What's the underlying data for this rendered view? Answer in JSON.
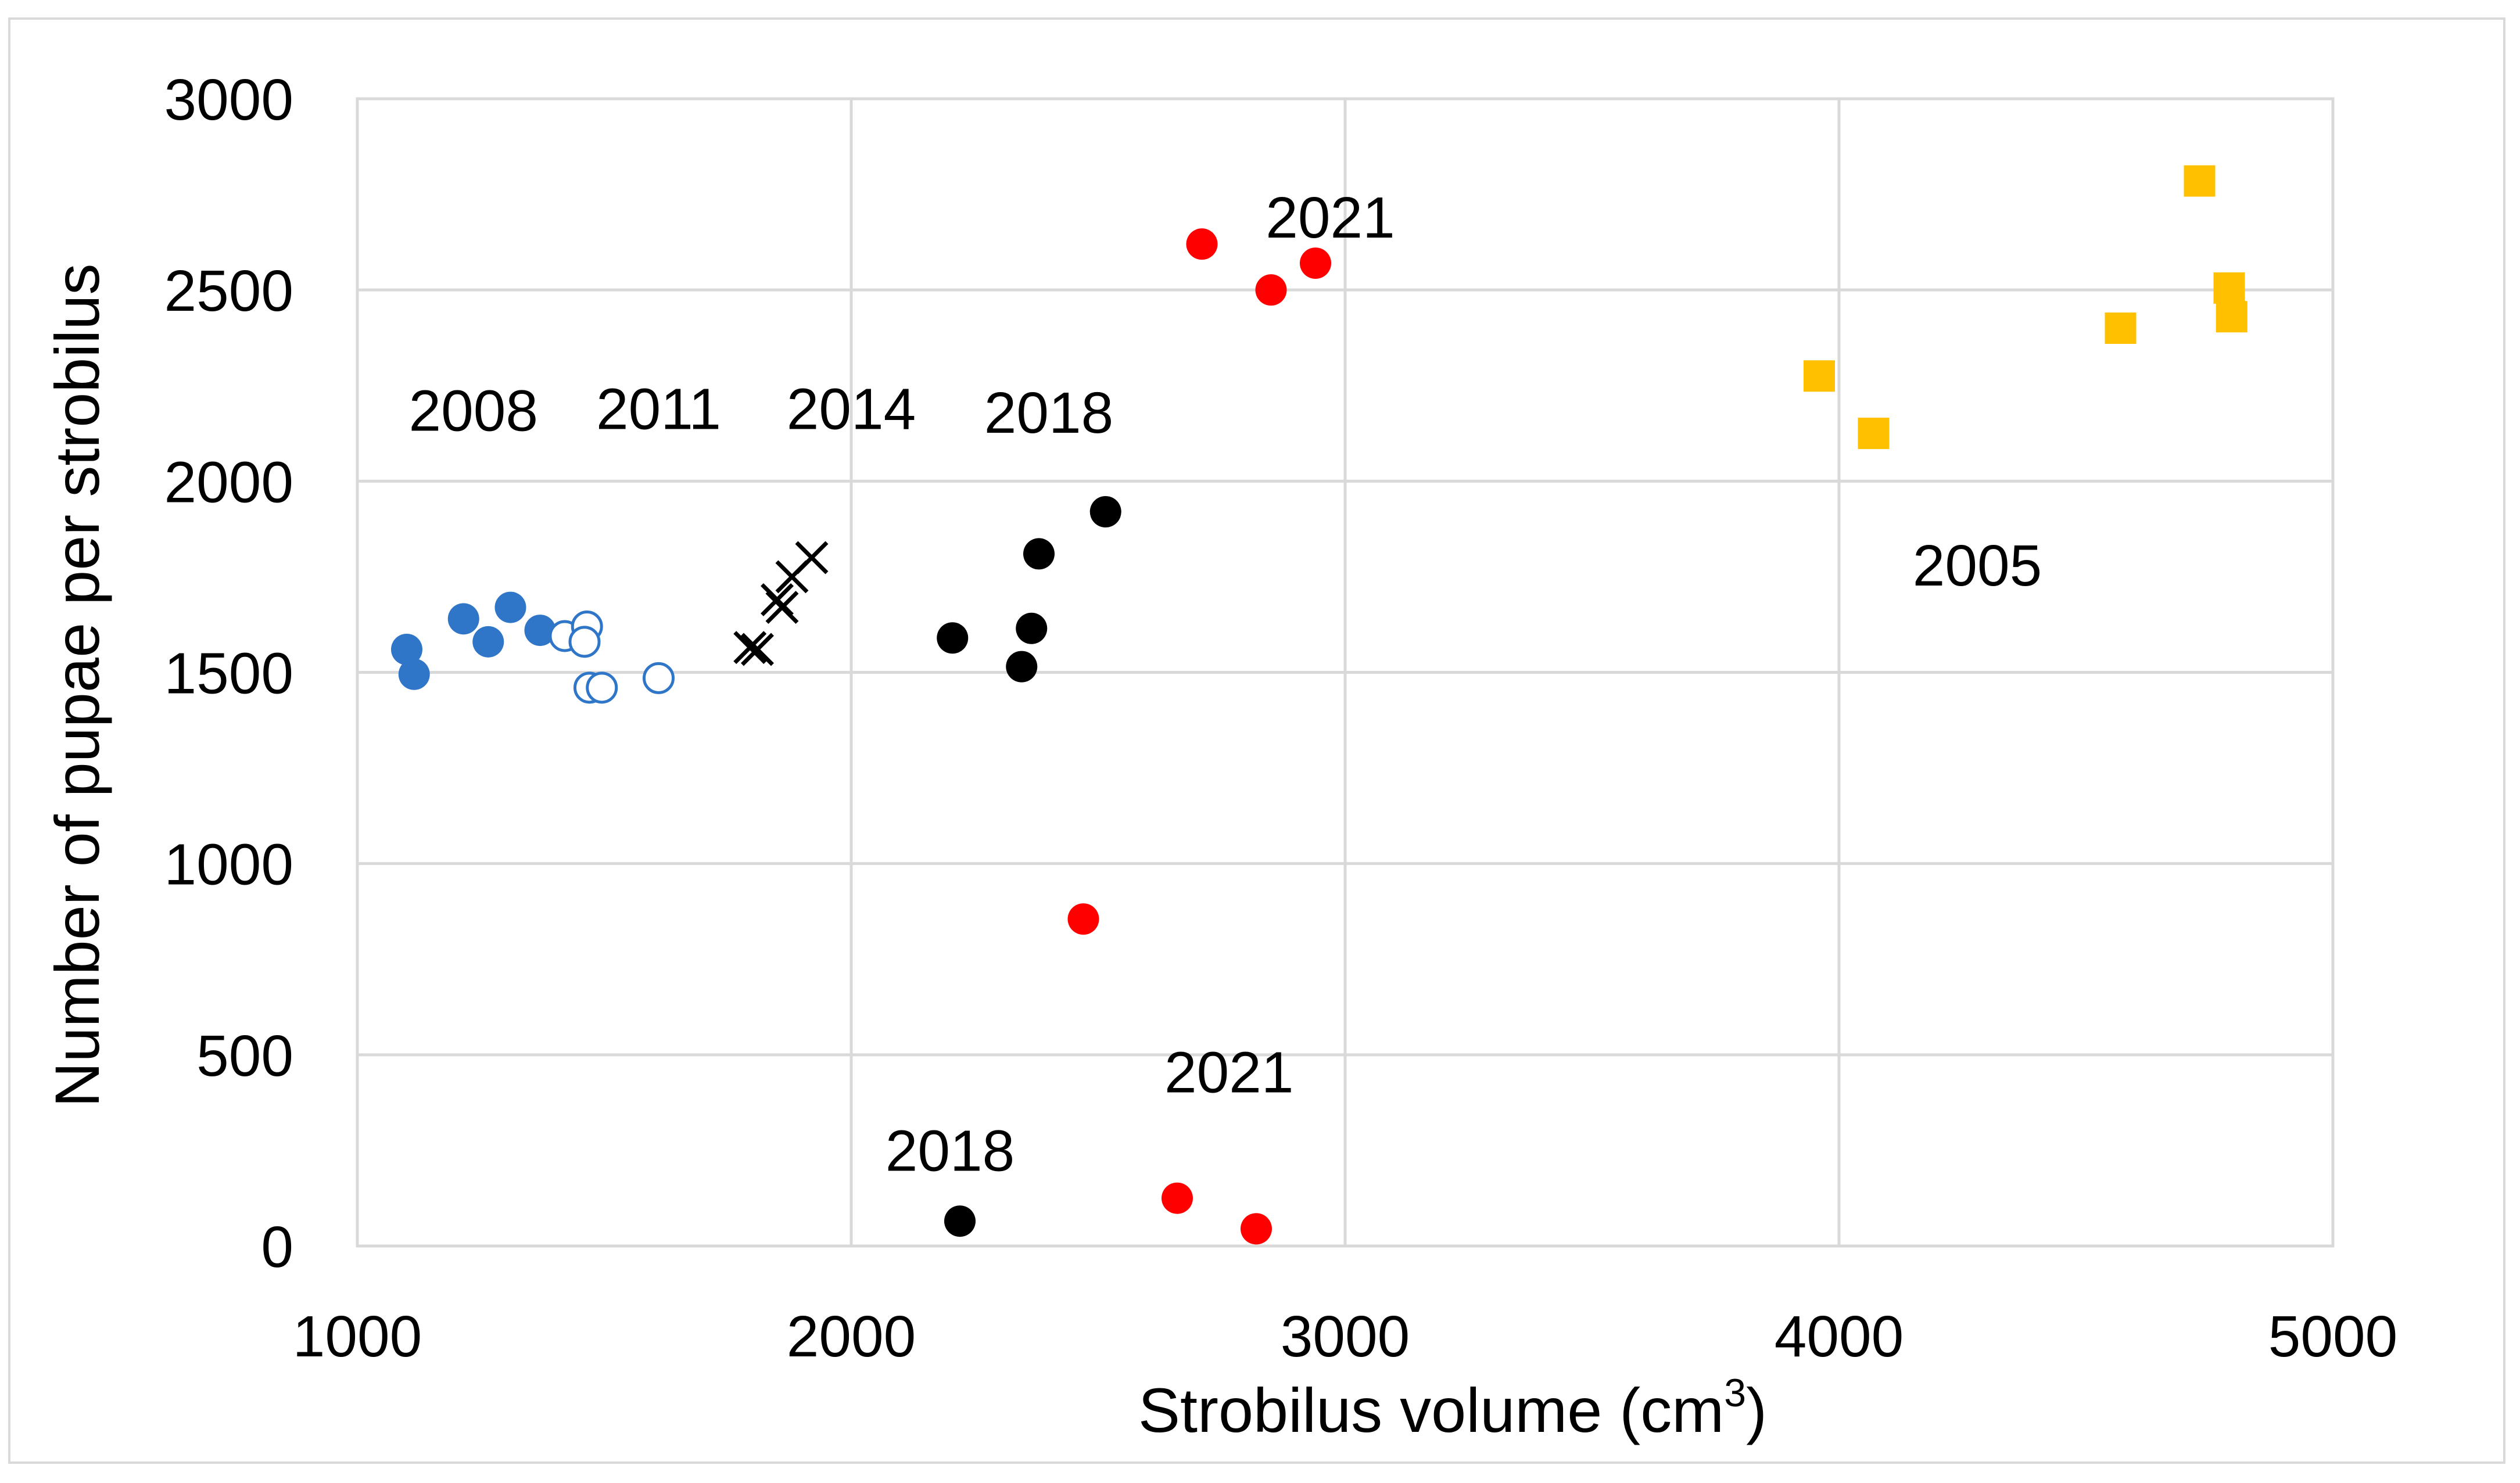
{
  "chart_data": {
    "type": "scatter",
    "title": "",
    "xlabel": "Strobilus volume (cm",
    "xlabel_sup": "3",
    "xlabel_end": ")",
    "ylabel": "Number of pupae per strobilus",
    "xlim": [
      1000,
      5000
    ],
    "ylim": [
      0,
      3000
    ],
    "xticks": [
      1000,
      2000,
      3000,
      4000,
      5000
    ],
    "yticks": [
      0,
      500,
      1000,
      1500,
      2000,
      2500,
      3000
    ],
    "grid": true,
    "series": [
      {
        "name": "2008",
        "marker": "circle-filled",
        "color": "#2f75c8",
        "points": [
          [
            1100,
            1560
          ],
          [
            1115,
            1495
          ],
          [
            1215,
            1640
          ],
          [
            1265,
            1580
          ],
          [
            1310,
            1670
          ],
          [
            1370,
            1610
          ]
        ]
      },
      {
        "name": "2011",
        "marker": "circle-open",
        "color": "#2f75c8",
        "points": [
          [
            1420,
            1595
          ],
          [
            1465,
            1620
          ],
          [
            1460,
            1580
          ],
          [
            1470,
            1460
          ],
          [
            1495,
            1460
          ],
          [
            1610,
            1485
          ]
        ]
      },
      {
        "name": "2014",
        "marker": "cross",
        "color": "#000000",
        "points": [
          [
            1795,
            1565
          ],
          [
            1810,
            1560
          ],
          [
            1850,
            1690
          ],
          [
            1860,
            1670
          ],
          [
            1880,
            1750
          ],
          [
            1920,
            1800
          ]
        ]
      },
      {
        "name": "2018",
        "marker": "circle-filled",
        "color": "#000000",
        "points": [
          [
            2205,
            1590
          ],
          [
            2345,
            1515
          ],
          [
            2365,
            1615
          ],
          [
            2380,
            1810
          ],
          [
            2515,
            1920
          ],
          [
            2220,
            65
          ]
        ]
      },
      {
        "name": "2021",
        "marker": "circle-filled",
        "color": "#ff0000",
        "points": [
          [
            2710,
            2620
          ],
          [
            2850,
            2500
          ],
          [
            2940,
            2570
          ],
          [
            2470,
            855
          ],
          [
            2660,
            125
          ],
          [
            2820,
            45
          ]
        ]
      },
      {
        "name": "2005",
        "marker": "square-filled",
        "color": "#ffc000",
        "points": [
          [
            3960,
            2275
          ],
          [
            4070,
            2125
          ],
          [
            4570,
            2400
          ],
          [
            4730,
            2785
          ],
          [
            4790,
            2505
          ],
          [
            4795,
            2430
          ]
        ]
      }
    ],
    "annotations": [
      {
        "text": "2008",
        "x": 1235,
        "y": 2185
      },
      {
        "text": "2011",
        "x": 1610,
        "y": 2190
      },
      {
        "text": "2014",
        "x": 2000,
        "y": 2190
      },
      {
        "text": "2018",
        "x": 2400,
        "y": 2180
      },
      {
        "text": "2021",
        "x": 2970,
        "y": 2690
      },
      {
        "text": "2005",
        "x": 4280,
        "y": 1780
      },
      {
        "text": "2021",
        "x": 2765,
        "y": 455
      },
      {
        "text": "2018",
        "x": 2200,
        "y": 250
      }
    ]
  }
}
